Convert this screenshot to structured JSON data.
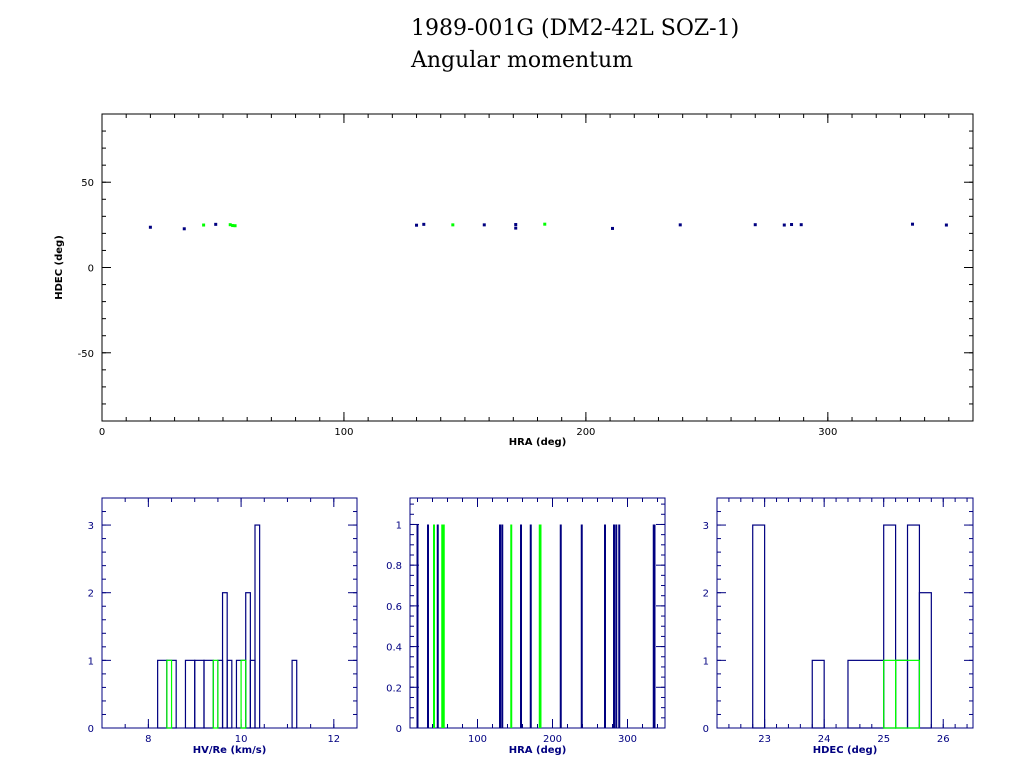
{
  "title": "1989-001G (DM2-42L SOZ-1)",
  "subtitle": "Angular momentum",
  "colors": {
    "main": "#000080",
    "highlight": "#00ff00",
    "axis_text": "#000080",
    "top_axis_text": "#000000"
  },
  "chart_data": [
    {
      "type": "scatter",
      "xlabel": "HRA (deg)",
      "ylabel": "HDEC (deg)",
      "xlim": [
        0,
        360
      ],
      "ylim": [
        -90,
        90
      ],
      "xticks": [
        0,
        100,
        200,
        300
      ],
      "yticks": [
        -50,
        0,
        50
      ],
      "series": [
        {
          "color": "main",
          "points": [
            [
              20,
              23.6
            ],
            [
              34,
              22.7
            ],
            [
              47,
              25.3
            ],
            [
              130,
              24.8
            ],
            [
              133,
              25.3
            ],
            [
              158,
              25.0
            ],
            [
              171,
              25.2
            ],
            [
              171,
              23.1
            ],
            [
              211,
              22.9
            ],
            [
              239,
              25.0
            ],
            [
              270,
              25.1
            ],
            [
              282,
              24.9
            ],
            [
              285,
              25.2
            ],
            [
              289,
              25.1
            ],
            [
              335,
              25.4
            ],
            [
              349,
              24.9
            ]
          ]
        },
        {
          "color": "highlight",
          "points": [
            [
              42,
              24.9
            ],
            [
              53,
              25.1
            ],
            [
              54,
              24.6
            ],
            [
              55,
              24.5
            ],
            [
              145,
              25.0
            ],
            [
              183,
              25.4
            ]
          ]
        }
      ]
    },
    {
      "type": "bar",
      "xlabel": "HV/Re (km/s)",
      "ylabel": "",
      "xlim": [
        7,
        12.5
      ],
      "ylim": [
        0,
        3.4
      ],
      "xticks": [
        8,
        10,
        12
      ],
      "yticks": [
        0,
        1,
        2,
        3
      ],
      "series": [
        {
          "color": "main",
          "bins": [
            [
              8.2,
              8.4,
              1
            ],
            [
              8.4,
              8.6,
              1
            ],
            [
              8.8,
              9.0,
              1
            ],
            [
              9.0,
              9.2,
              1
            ],
            [
              9.2,
              9.4,
              1
            ],
            [
              9.5,
              9.6,
              1
            ],
            [
              9.6,
              9.7,
              2
            ],
            [
              9.7,
              9.8,
              1
            ],
            [
              9.9,
              10.1,
              1
            ],
            [
              10.1,
              10.2,
              2
            ],
            [
              10.2,
              10.3,
              1
            ],
            [
              10.3,
              10.4,
              3
            ],
            [
              11.1,
              11.2,
              1
            ]
          ]
        },
        {
          "color": "highlight",
          "bins": [
            [
              8.4,
              8.5,
              1
            ],
            [
              9.4,
              9.5,
              1
            ],
            [
              10.0,
              10.1,
              1
            ]
          ]
        }
      ]
    },
    {
      "type": "bar",
      "xlabel": "HRA (deg)",
      "ylabel": "",
      "xlim": [
        10,
        350
      ],
      "ylim": [
        0,
        1.13
      ],
      "xticks": [
        100,
        200,
        300
      ],
      "yticks": [
        0,
        0.2,
        0.4,
        0.6,
        0.8,
        1
      ],
      "yticklabels": [
        "0",
        "0.2",
        "0.4",
        "0.6",
        "0.8",
        "1"
      ],
      "series": [
        {
          "color": "main",
          "spikes": [
            20,
            34,
            47,
            130,
            133,
            158,
            171,
            211,
            239,
            270,
            282,
            285,
            289,
            335,
            336
          ]
        },
        {
          "color": "highlight",
          "spikes": [
            42,
            53,
            54,
            55,
            145,
            183,
            184
          ]
        }
      ]
    },
    {
      "type": "bar",
      "xlabel": "HDEC (deg)",
      "ylabel": "",
      "xlim": [
        22.2,
        26.5
      ],
      "ylim": [
        0,
        3.4
      ],
      "xticks": [
        23,
        24,
        25,
        26
      ],
      "yticks": [
        0,
        1,
        2,
        3
      ],
      "series": [
        {
          "color": "main",
          "bins": [
            [
              22.8,
              23.0,
              3
            ],
            [
              23.8,
              24.0,
              1
            ],
            [
              24.4,
              25.0,
              1
            ],
            [
              25.0,
              25.2,
              3
            ],
            [
              25.2,
              25.4,
              1
            ],
            [
              25.4,
              25.6,
              3
            ],
            [
              25.6,
              25.8,
              2
            ]
          ]
        },
        {
          "color": "highlight",
          "bins": [
            [
              25.0,
              25.2,
              1
            ],
            [
              25.2,
              25.6,
              1
            ]
          ]
        }
      ]
    }
  ]
}
